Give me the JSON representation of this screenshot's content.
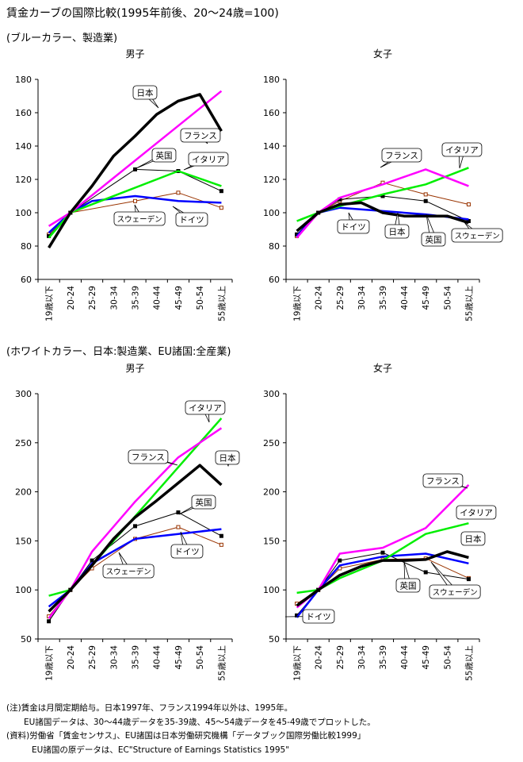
{
  "title": "賃金カーブの国際比較(1995年前後、20〜24歳=100)",
  "sections": [
    {
      "label": "(ブルーカラー、製造業)"
    },
    {
      "label": "(ホワイトカラー、日本:製造業、EU諸国:全産業)"
    }
  ],
  "notes": [
    "(注)賃金は月間定期給与。日本1997年、フランス1994年以外は、1995年。",
    "EU諸国データは、30〜44歳データを35-39歳、45〜54歳データを45-49歳でプロットした。",
    "(資料)労働省「賃金センサス」、EU諸国は日本労働研究機構「データブック国際労働比較1999」",
    "EU諸国の原データは、EC\"Structure of Earnings Statistics 1995\""
  ],
  "series_styles": {
    "日本": {
      "color": "#000000",
      "marker": "none",
      "bold": true
    },
    "フランス": {
      "color": "#ff00ff",
      "marker": "none",
      "bold": false
    },
    "イタリア": {
      "color": "#00ee00",
      "marker": "none",
      "bold": false
    },
    "英国": {
      "color": "#000000",
      "marker": "square-filled",
      "bold": false
    },
    "ドイツ": {
      "color": "#993300",
      "marker": "square-open",
      "bold": false
    },
    "スウェーデン": {
      "color": "#0000ff",
      "marker": "none",
      "bold": false
    }
  },
  "chart_data": [
    {
      "type": "line",
      "title": "男子",
      "categories": [
        "19歳以下",
        "20-24",
        "25-29",
        "30-34",
        "35-39",
        "40-44",
        "45-49",
        "50-54",
        "55歳以上"
      ],
      "ylim": [
        60,
        180
      ],
      "yticks": [
        60,
        80,
        100,
        120,
        140,
        160,
        180
      ],
      "series": [
        {
          "name": "日本",
          "values": [
            79,
            100,
            116,
            134,
            146,
            159,
            167,
            171,
            149
          ]
        },
        {
          "name": "フランス",
          "values": [
            92,
            100,
            null,
            null,
            null,
            null,
            null,
            null,
            173
          ]
        },
        {
          "name": "イタリア",
          "values": [
            85,
            100,
            null,
            null,
            null,
            null,
            125,
            null,
            116
          ]
        },
        {
          "name": "英国",
          "values": [
            86,
            100,
            null,
            null,
            126,
            null,
            125,
            null,
            113
          ]
        },
        {
          "name": "ドイツ",
          "values": [
            87,
            100,
            null,
            null,
            107,
            null,
            112,
            null,
            103
          ]
        },
        {
          "name": "スウェーデン",
          "values": [
            88,
            100,
            107,
            null,
            110,
            null,
            107,
            null,
            106
          ]
        }
      ],
      "callouts": [
        {
          "label": "日本",
          "series": "日本"
        },
        {
          "label": "フランス",
          "series": "フランス"
        },
        {
          "label": "英国",
          "series": "英国"
        },
        {
          "label": "イタリア",
          "series": "イタリア"
        },
        {
          "label": "スウェーデン",
          "series": "スウェーデン"
        },
        {
          "label": "ドイツ",
          "series": "ドイツ"
        }
      ]
    },
    {
      "type": "line",
      "title": "女子",
      "categories": [
        "19歳以下",
        "20-24",
        "25-29",
        "30-34",
        "35-39",
        "40-44",
        "45-49",
        "50-54",
        "55歳以上"
      ],
      "ylim": [
        60,
        180
      ],
      "yticks": [
        60,
        80,
        100,
        120,
        140,
        160,
        180
      ],
      "series": [
        {
          "name": "日本",
          "values": [
            89,
            100,
            105,
            106,
            100,
            98,
            98,
            98,
            94
          ]
        },
        {
          "name": "フランス",
          "values": [
            85,
            100,
            109,
            null,
            117,
            null,
            126,
            null,
            116
          ]
        },
        {
          "name": "イタリア",
          "values": [
            95,
            100,
            104,
            null,
            111,
            null,
            117,
            null,
            127
          ]
        },
        {
          "name": "英国",
          "values": [
            87,
            100,
            108,
            null,
            110,
            null,
            107,
            null,
            95
          ]
        },
        {
          "name": "ドイツ",
          "values": [
            86,
            100,
            107,
            null,
            118,
            null,
            111,
            null,
            105
          ]
        },
        {
          "name": "スウェーデン",
          "values": [
            86,
            100,
            103,
            null,
            101,
            null,
            99,
            null,
            96
          ]
        }
      ],
      "callouts": [
        {
          "label": "フランス",
          "series": "フランス"
        },
        {
          "label": "イタリア",
          "series": "イタリア"
        },
        {
          "label": "ドイツ",
          "series": "ドイツ"
        },
        {
          "label": "日本",
          "series": "日本"
        },
        {
          "label": "英国",
          "series": "英国"
        },
        {
          "label": "スウェーデン",
          "series": "スウェーデン"
        }
      ]
    },
    {
      "type": "line",
      "title": "男子",
      "categories": [
        "19歳以下",
        "20-24",
        "25-29",
        "30-34",
        "35-39",
        "40-44",
        "45-49",
        "50-54",
        "55歳以上"
      ],
      "ylim": [
        50,
        300
      ],
      "yticks": [
        50,
        100,
        150,
        200,
        250,
        300
      ],
      "series": [
        {
          "name": "日本",
          "values": [
            78,
            100,
            125,
            152,
            174,
            191,
            209,
            227,
            207
          ]
        },
        {
          "name": "フランス",
          "values": [
            71,
            100,
            139,
            null,
            190,
            null,
            235,
            null,
            265
          ]
        },
        {
          "name": "イタリア",
          "values": [
            94,
            100,
            null,
            null,
            175,
            null,
            225,
            null,
            275
          ]
        },
        {
          "name": "英国",
          "values": [
            68,
            100,
            130,
            null,
            165,
            null,
            179,
            null,
            155
          ]
        },
        {
          "name": "ドイツ",
          "values": [
            73,
            100,
            122,
            null,
            152,
            null,
            164,
            null,
            146
          ]
        },
        {
          "name": "スウェーデン",
          "values": [
            83,
            100,
            127,
            null,
            152,
            null,
            157,
            null,
            162
          ]
        }
      ],
      "callouts": [
        {
          "label": "イタリア",
          "series": "イタリア"
        },
        {
          "label": "フランス",
          "series": "フランス"
        },
        {
          "label": "日本",
          "series": "日本"
        },
        {
          "label": "英国",
          "series": "英国"
        },
        {
          "label": "ドイツ",
          "series": "ドイツ"
        },
        {
          "label": "スウェーデン",
          "series": "スウェーデン"
        }
      ]
    },
    {
      "type": "line",
      "title": "女子",
      "categories": [
        "19歳以下",
        "20-24",
        "25-29",
        "30-34",
        "35-39",
        "40-44",
        "45-49",
        "50-54",
        "55歳以上"
      ],
      "ylim": [
        50,
        300
      ],
      "yticks": [
        50,
        100,
        150,
        200,
        250,
        300
      ],
      "series": [
        {
          "name": "日本",
          "values": [
            84,
            100,
            115,
            124,
            130,
            130,
            131,
            139,
            133
          ]
        },
        {
          "name": "フランス",
          "values": [
            82,
            100,
            137,
            null,
            143,
            null,
            163,
            null,
            207
          ]
        },
        {
          "name": "イタリア",
          "values": [
            97,
            100,
            112,
            null,
            130,
            null,
            157,
            null,
            168
          ]
        },
        {
          "name": "英国",
          "values": [
            74,
            100,
            130,
            null,
            138,
            null,
            118,
            null,
            111
          ]
        },
        {
          "name": "ドイツ",
          "values": [
            86,
            100,
            122,
            null,
            131,
            null,
            132,
            null,
            112
          ]
        },
        {
          "name": "スウェーデン",
          "values": [
            72,
            100,
            125,
            null,
            134,
            null,
            137,
            null,
            127
          ]
        }
      ],
      "callouts": [
        {
          "label": "フランス",
          "series": "フランス"
        },
        {
          "label": "イタリア",
          "series": "イタリア"
        },
        {
          "label": "日本",
          "series": "日本"
        },
        {
          "label": "英国",
          "series": "英国"
        },
        {
          "label": "スウェーデン",
          "series": "スウェーデン"
        },
        {
          "label": "ドイツ",
          "series": "ドイツ"
        }
      ]
    }
  ]
}
